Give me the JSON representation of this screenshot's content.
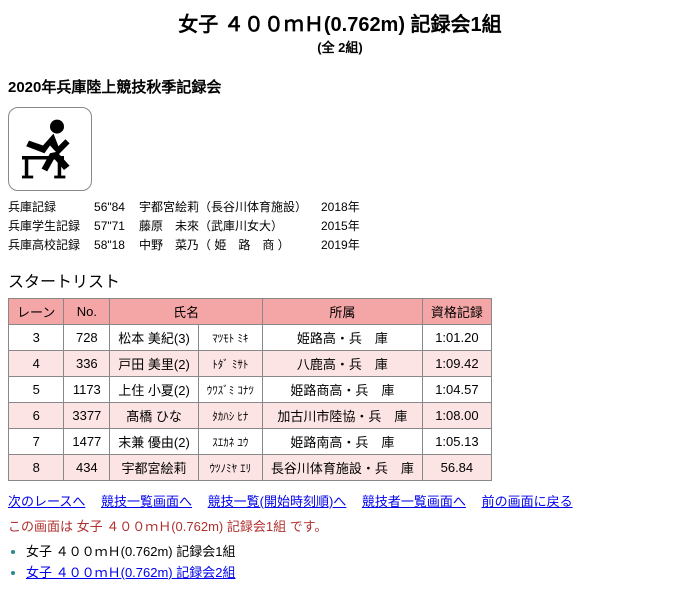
{
  "title": {
    "event": "女子 ４００ｍＨ(0.762m) 記録会1組",
    "total_heats": "(全 2組)"
  },
  "meet_name": "2020年兵庫陸上競技秋季記録会",
  "records": [
    {
      "label": "兵庫記録",
      "mark": "56\"84",
      "holder": "宇都宮絵莉（長谷川体育施設）",
      "year": "2018年"
    },
    {
      "label": "兵庫学生記録",
      "mark": "57\"71",
      "holder": "藤原　未來（武庫川女大）",
      "year": "2015年"
    },
    {
      "label": "兵庫高校記録",
      "mark": "58\"18",
      "holder": "中野　菜乃（ 姫　路　商 ）",
      "year": "2019年"
    }
  ],
  "section_header": "スタートリスト",
  "columns": {
    "lane": "レーン",
    "no": "No.",
    "name": "氏名",
    "affil": "所属",
    "qual": "資格記録"
  },
  "rows": [
    {
      "lane": "3",
      "no": "728",
      "name": "松本 美紀(3)",
      "kana": "ﾏﾂﾓﾄ ﾐｷ",
      "affil": "姫路高・兵　庫",
      "qual": "1:01.20"
    },
    {
      "lane": "4",
      "no": "336",
      "name": "戸田 美里(2)",
      "kana": "ﾄﾀﾞ ﾐｻﾄ",
      "affil": "八鹿高・兵　庫",
      "qual": "1:09.42"
    },
    {
      "lane": "5",
      "no": "1173",
      "name": "上住 小夏(2)",
      "kana": "ｳﾜｽﾞﾐ ｺﾅﾂ",
      "affil": "姫路商高・兵　庫",
      "qual": "1:04.57"
    },
    {
      "lane": "6",
      "no": "3377",
      "name": "髙橋 ひな",
      "kana": "ﾀｶﾊｼ ﾋﾅ",
      "affil": "加古川市陸協・兵　庫",
      "qual": "1:08.00"
    },
    {
      "lane": "7",
      "no": "1477",
      "name": "末兼 優由(2)",
      "kana": "ｽｴｶﾈ ﾕｳ",
      "affil": "姫路南高・兵　庫",
      "qual": "1:05.13"
    },
    {
      "lane": "8",
      "no": "434",
      "name": "宇都宮絵莉",
      "kana": "ｳﾂﾉﾐﾔ ｴﾘ",
      "affil": "長谷川体育施設・兵　庫",
      "qual": "56.84"
    }
  ],
  "nav": {
    "next_race": "次のレースへ",
    "event_list": "競技一覧画面へ",
    "event_list_time": "競技一覧(開始時刻順)へ",
    "athlete_list": "競技者一覧画面へ",
    "back": "前の画面に戻る"
  },
  "footer_note": "この画面は 女子 ４００ｍＨ(0.762m) 記録会1組 です。",
  "heats": [
    {
      "label": "女子 ４００ｍＨ(0.762m) 記録会1組",
      "current": true
    },
    {
      "label": "女子 ４００ｍＨ(0.762m) 記録会2組",
      "current": false
    }
  ]
}
